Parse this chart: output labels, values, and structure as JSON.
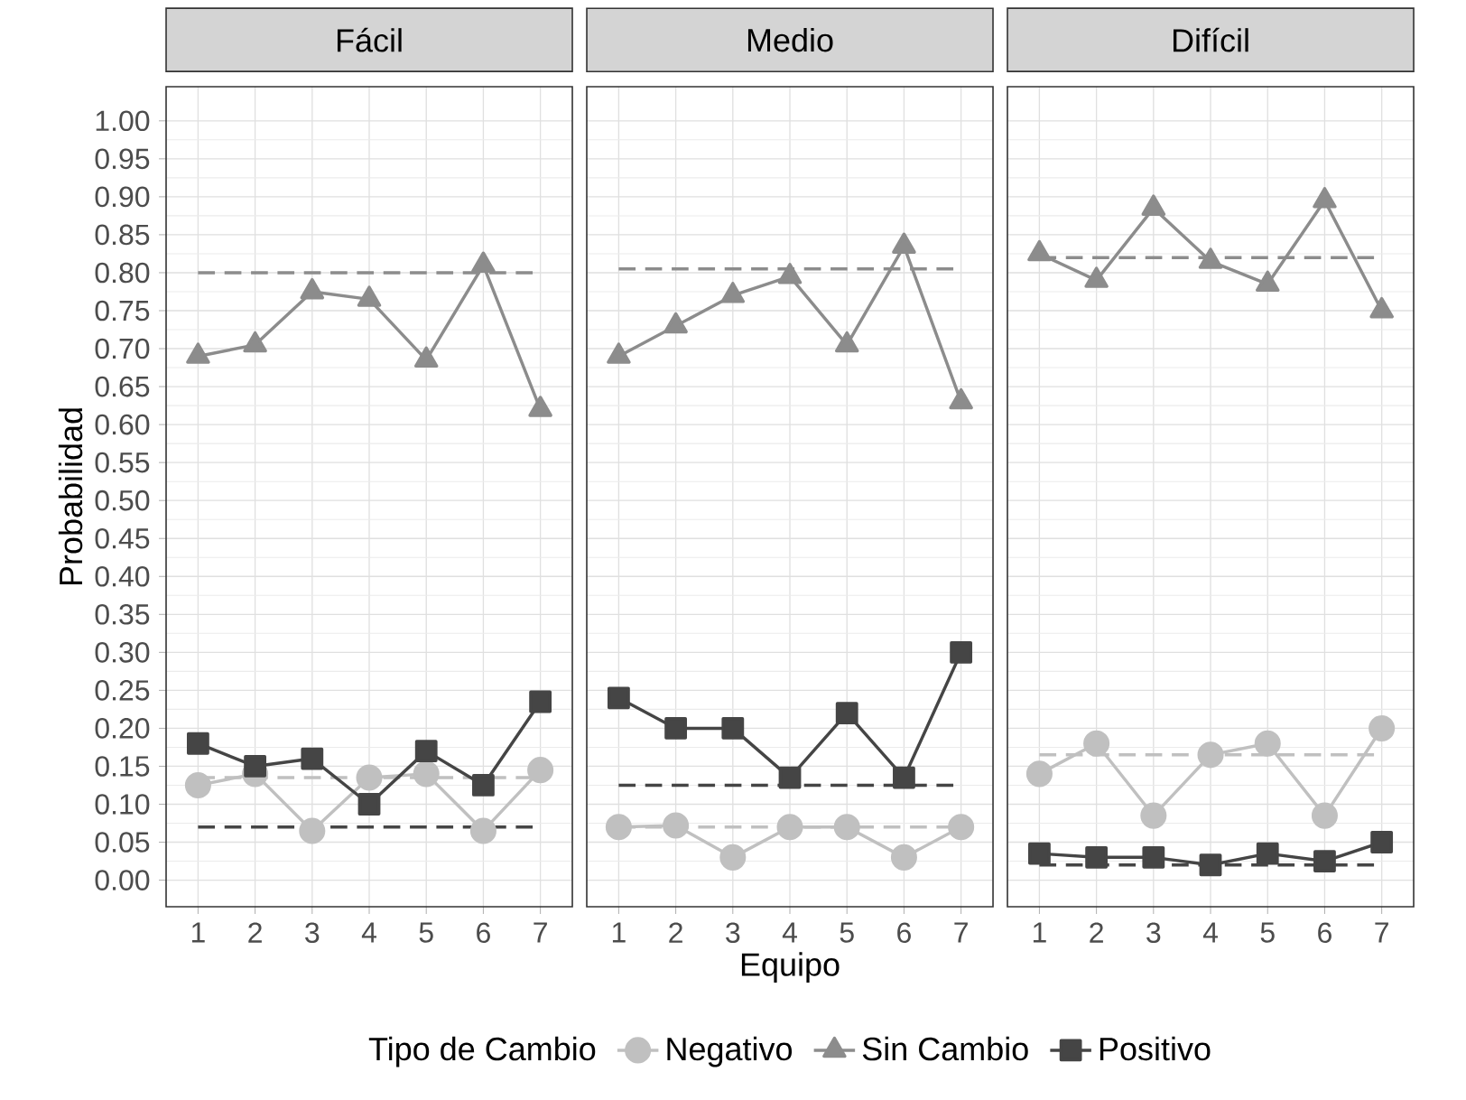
{
  "chart_data": [
    {
      "type": "line",
      "title": "Fácil",
      "ylabel": "Probabilidad",
      "categories": [
        "1",
        "2",
        "3",
        "4",
        "5",
        "6",
        "7"
      ],
      "series": [
        {
          "color": "#c0c0c0",
          "marker": "circle",
          "values": [
            0.125,
            0.14,
            0.065,
            0.135,
            0.14,
            0.065,
            0.145
          ]
        },
        {
          "color": "#8c8c8c",
          "marker": "triangle",
          "values": [
            0.69,
            0.705,
            0.775,
            0.765,
            0.685,
            0.81,
            0.62
          ]
        },
        {
          "color": "#454545",
          "marker": "square",
          "values": [
            0.18,
            0.15,
            0.16,
            0.1,
            0.17,
            0.125,
            0.235
          ]
        }
      ],
      "ref_lines": [
        {
          "axis": "y",
          "value": 0.135,
          "color": "#c0c0c0",
          "line_style": "dashed"
        },
        {
          "axis": "y",
          "value": 0.8,
          "color": "#8c8c8c",
          "line_style": "dashed"
        },
        {
          "axis": "y",
          "value": 0.07,
          "color": "#454545",
          "line_style": "dashed"
        }
      ],
      "ylim": [
        -0.035,
        1.045
      ],
      "yticks": [
        {
          "value": 0,
          "label": "0.00"
        },
        {
          "value": 0.05,
          "label": "0.05"
        },
        {
          "value": 0.1,
          "label": "0.10"
        },
        {
          "value": 0.15,
          "label": "0.15"
        },
        {
          "value": 0.2,
          "label": "0.20"
        },
        {
          "value": 0.25,
          "label": "0.25"
        },
        {
          "value": 0.3,
          "label": "0.30"
        },
        {
          "value": 0.35,
          "label": "0.35"
        },
        {
          "value": 0.4,
          "label": "0.40"
        },
        {
          "value": 0.45,
          "label": "0.45"
        },
        {
          "value": 0.5,
          "label": "0.50"
        },
        {
          "value": 0.55,
          "label": "0.55"
        },
        {
          "value": 0.6,
          "label": "0.60"
        },
        {
          "value": 0.65,
          "label": "0.65"
        },
        {
          "value": 0.7,
          "label": "0.70"
        },
        {
          "value": 0.75,
          "label": "0.75"
        },
        {
          "value": 0.8,
          "label": "0.80"
        },
        {
          "value": 0.85,
          "label": "0.85"
        },
        {
          "value": 0.9,
          "label": "0.90"
        },
        {
          "value": 0.95,
          "label": "0.95"
        },
        {
          "value": 1,
          "label": "1.00"
        }
      ],
      "grid": true
    },
    {
      "type": "line",
      "title": "Medio",
      "xlabel": "Equipo",
      "legend_title": "Tipo de Cambio",
      "legend": "bottom",
      "tick_labels": "x",
      "categories": [
        "1",
        "2",
        "3",
        "4",
        "5",
        "6",
        "7"
      ],
      "series": [
        {
          "name": "Negativo",
          "color": "#c0c0c0",
          "marker": "circle",
          "values": [
            0.07,
            0.072,
            0.03,
            0.07,
            0.07,
            0.03,
            0.07
          ]
        },
        {
          "name": "Sin Cambio",
          "color": "#8c8c8c",
          "marker": "triangle",
          "values": [
            0.69,
            0.73,
            0.77,
            0.795,
            0.705,
            0.835,
            0.63
          ]
        },
        {
          "name": "Positivo",
          "color": "#454545",
          "marker": "square",
          "values": [
            0.24,
            0.2,
            0.2,
            0.135,
            0.22,
            0.135,
            0.3
          ]
        }
      ],
      "ref_lines": [
        {
          "axis": "y",
          "value": 0.07,
          "color": "#c0c0c0",
          "line_style": "dashed"
        },
        {
          "axis": "y",
          "value": 0.805,
          "color": "#8c8c8c",
          "line_style": "dashed"
        },
        {
          "axis": "y",
          "value": 0.125,
          "color": "#454545",
          "line_style": "dashed"
        }
      ],
      "ylim": [
        -0.035,
        1.045
      ],
      "yticks": [
        {
          "value": 0,
          "label": null
        },
        {
          "value": 0.05,
          "label": null
        },
        {
          "value": 0.1,
          "label": null
        },
        {
          "value": 0.15,
          "label": null
        },
        {
          "value": 0.2,
          "label": null
        },
        {
          "value": 0.25,
          "label": null
        },
        {
          "value": 0.3,
          "label": null
        },
        {
          "value": 0.35,
          "label": null
        },
        {
          "value": 0.4,
          "label": null
        },
        {
          "value": 0.45,
          "label": null
        },
        {
          "value": 0.5,
          "label": null
        },
        {
          "value": 0.55,
          "label": null
        },
        {
          "value": 0.6,
          "label": null
        },
        {
          "value": 0.65,
          "label": null
        },
        {
          "value": 0.7,
          "label": null
        },
        {
          "value": 0.75,
          "label": null
        },
        {
          "value": 0.8,
          "label": null
        },
        {
          "value": 0.85,
          "label": null
        },
        {
          "value": 0.9,
          "label": null
        },
        {
          "value": 0.95,
          "label": null
        },
        {
          "value": 1,
          "label": null
        }
      ],
      "grid": true
    },
    {
      "type": "line",
      "title": "Difícil",
      "tick_labels": "x",
      "categories": [
        "1",
        "2",
        "3",
        "4",
        "5",
        "6",
        "7"
      ],
      "series": [
        {
          "color": "#c0c0c0",
          "marker": "circle",
          "values": [
            0.14,
            0.18,
            0.085,
            0.165,
            0.18,
            0.085,
            0.2
          ]
        },
        {
          "color": "#8c8c8c",
          "marker": "triangle",
          "values": [
            0.825,
            0.79,
            0.885,
            0.815,
            0.785,
            0.895,
            0.75
          ]
        },
        {
          "color": "#454545",
          "marker": "square",
          "values": [
            0.035,
            0.03,
            0.03,
            0.02,
            0.035,
            0.025,
            0.05
          ]
        }
      ],
      "ref_lines": [
        {
          "axis": "y",
          "value": 0.165,
          "color": "#c0c0c0",
          "line_style": "dashed"
        },
        {
          "axis": "y",
          "value": 0.82,
          "color": "#8c8c8c",
          "line_style": "dashed"
        },
        {
          "axis": "y",
          "value": 0.02,
          "color": "#454545",
          "line_style": "dashed"
        }
      ],
      "ylim": [
        -0.035,
        1.045
      ],
      "yticks": [
        {
          "value": 0,
          "label": null
        },
        {
          "value": 0.05,
          "label": null
        },
        {
          "value": 0.1,
          "label": null
        },
        {
          "value": 0.15,
          "label": null
        },
        {
          "value": 0.2,
          "label": null
        },
        {
          "value": 0.25,
          "label": null
        },
        {
          "value": 0.3,
          "label": null
        },
        {
          "value": 0.35,
          "label": null
        },
        {
          "value": 0.4,
          "label": null
        },
        {
          "value": 0.45,
          "label": null
        },
        {
          "value": 0.5,
          "label": null
        },
        {
          "value": 0.55,
          "label": null
        },
        {
          "value": 0.6,
          "label": null
        },
        {
          "value": 0.65,
          "label": null
        },
        {
          "value": 0.7,
          "label": null
        },
        {
          "value": 0.75,
          "label": null
        },
        {
          "value": 0.8,
          "label": null
        },
        {
          "value": 0.85,
          "label": null
        },
        {
          "value": 0.9,
          "label": null
        },
        {
          "value": 0.95,
          "label": null
        },
        {
          "value": 1,
          "label": null
        }
      ],
      "grid": true
    }
  ]
}
